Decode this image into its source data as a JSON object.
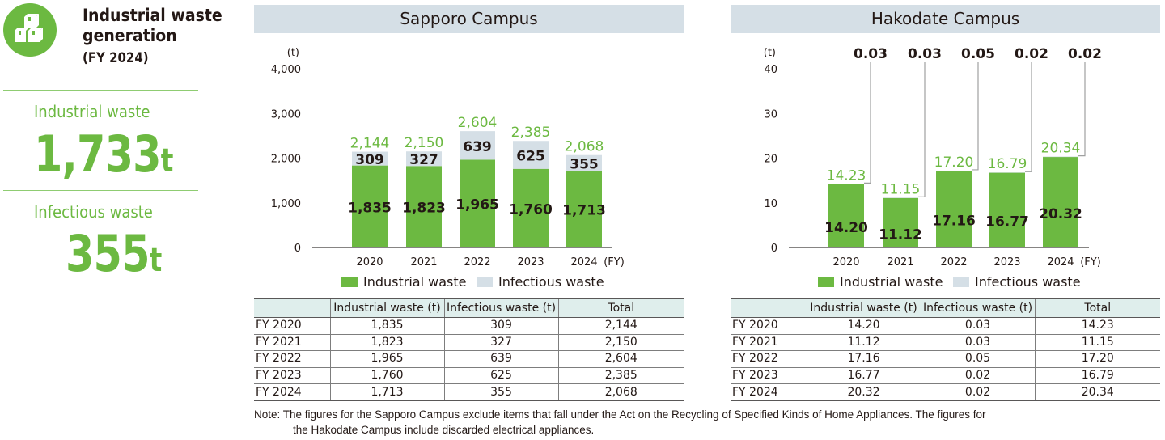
{
  "summary": {
    "icon": "boxes-icon",
    "title_line1": "Industrial waste",
    "title_line2": "generation",
    "subtitle": "(FY 2024)",
    "industrial_label": "Industrial waste",
    "industrial_value": "1,733",
    "industrial_unit": "t",
    "infectious_label": "Infectious waste",
    "infectious_value": "355",
    "infectious_unit": "t"
  },
  "colors": {
    "industrial": "#6cb941",
    "infectious": "#d5dfe6",
    "total_label": "#6cb941",
    "header_band": "#d5dfe6",
    "table_header": "#dfeeec"
  },
  "chart_data": [
    {
      "type": "bar",
      "stacked": true,
      "title": "Sapporo Campus",
      "ylabel": "(t)",
      "xlabel": "(FY)",
      "ylim": [
        0,
        4000
      ],
      "yticks": [
        "0",
        "1,000",
        "2,000",
        "3,000",
        "4,000"
      ],
      "ytick_values": [
        0,
        1000,
        2000,
        3000,
        4000
      ],
      "categories": [
        "2020",
        "2021",
        "2022",
        "2023",
        "2024"
      ],
      "series": [
        {
          "name": "Industrial waste",
          "values": [
            1835,
            1823,
            1965,
            1760,
            1713
          ],
          "labels": [
            "1,835",
            "1,823",
            "1,965",
            "1,760",
            "1,713"
          ]
        },
        {
          "name": "Infectious waste",
          "values": [
            309,
            327,
            639,
            625,
            355
          ],
          "labels": [
            "309",
            "327",
            "639",
            "625",
            "355"
          ]
        }
      ],
      "totals": [
        2144,
        2150,
        2604,
        2385,
        2068
      ],
      "total_labels": [
        "2,144",
        "2,150",
        "2,604",
        "2,385",
        "2,068"
      ],
      "legend": [
        "Industrial waste",
        "Infectious waste"
      ],
      "legend_position": "bottom",
      "grid": false
    },
    {
      "type": "bar",
      "stacked": true,
      "title": "Hakodate Campus",
      "ylabel": "(t)",
      "xlabel": "(FY)",
      "ylim": [
        0,
        40
      ],
      "yticks": [
        "0",
        "10",
        "20",
        "30",
        "40"
      ],
      "ytick_values": [
        0,
        10,
        20,
        30,
        40
      ],
      "categories": [
        "2020",
        "2021",
        "2022",
        "2023",
        "2024"
      ],
      "series": [
        {
          "name": "Industrial waste",
          "values": [
            14.2,
            11.12,
            17.16,
            16.77,
            20.32
          ],
          "labels": [
            "14.20",
            "11.12",
            "17.16",
            "16.77",
            "20.32"
          ]
        },
        {
          "name": "Infectious waste",
          "values": [
            0.03,
            0.03,
            0.05,
            0.02,
            0.02
          ],
          "labels": [
            "0.03",
            "0.03",
            "0.05",
            "0.02",
            "0.02"
          ]
        }
      ],
      "totals": [
        14.23,
        11.15,
        17.2,
        16.79,
        20.34
      ],
      "total_labels": [
        "14.23",
        "11.15",
        "17.20",
        "16.79",
        "20.34"
      ],
      "legend": [
        "Industrial waste",
        "Infectious waste"
      ],
      "legend_position": "bottom",
      "grid": false
    }
  ],
  "tables": [
    {
      "headers": [
        "",
        "Industrial waste (t)",
        "Infectious waste (t)",
        "Total"
      ],
      "rows": [
        [
          "FY 2020",
          "1,835",
          "309",
          "2,144"
        ],
        [
          "FY 2021",
          "1,823",
          "327",
          "2,150"
        ],
        [
          "FY 2022",
          "1,965",
          "639",
          "2,604"
        ],
        [
          "FY 2023",
          "1,760",
          "625",
          "2,385"
        ],
        [
          "FY 2024",
          "1,713",
          "355",
          "2,068"
        ]
      ]
    },
    {
      "headers": [
        "",
        "Industrial waste (t)",
        "Infectious waste (t)",
        "Total"
      ],
      "rows": [
        [
          "FY 2020",
          "14.20",
          "0.03",
          "14.23"
        ],
        [
          "FY 2021",
          "11.12",
          "0.03",
          "11.15"
        ],
        [
          "FY 2022",
          "17.16",
          "0.05",
          "17.20"
        ],
        [
          "FY 2023",
          "16.77",
          "0.02",
          "16.79"
        ],
        [
          "FY 2024",
          "20.32",
          "0.02",
          "20.34"
        ]
      ]
    }
  ],
  "note": {
    "line1": "Note: The figures for the Sapporo Campus exclude items that fall under the Act on the Recycling of Specified Kinds of Home Appliances. The figures for",
    "line2": "the Hakodate Campus include discarded electrical appliances."
  }
}
